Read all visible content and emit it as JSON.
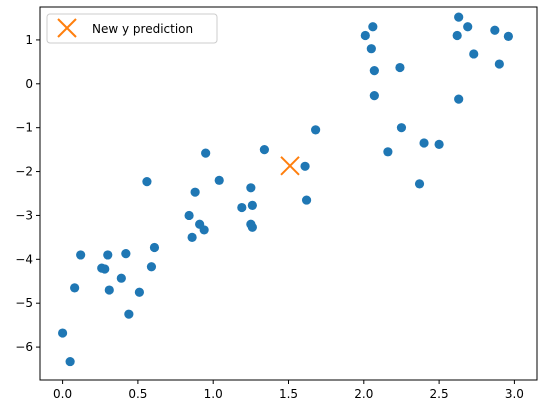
{
  "chart_data": {
    "type": "scatter",
    "title": "",
    "xlabel": "",
    "ylabel": "",
    "xlim": [
      -0.15,
      3.15
    ],
    "ylim": [
      -6.75,
      1.75
    ],
    "xticks": [
      0.0,
      0.5,
      1.0,
      1.5,
      2.0,
      2.5,
      3.0
    ],
    "xtick_labels": [
      "0.0",
      "0.5",
      "1.0",
      "1.5",
      "2.0",
      "2.5",
      "3.0"
    ],
    "yticks": [
      -6,
      -5,
      -4,
      -3,
      -2,
      -1,
      0,
      1
    ],
    "ytick_labels": [
      "−6",
      "−5",
      "−4",
      "−3",
      "−2",
      "−1",
      "0",
      "1"
    ],
    "grid": false,
    "legend_position": "upper-left",
    "series": [
      {
        "name": "",
        "color": "#1f77b4",
        "marker": "circle",
        "points": [
          {
            "x": 0.0,
            "y": -5.68
          },
          {
            "x": 0.05,
            "y": -6.33
          },
          {
            "x": 0.08,
            "y": -4.65
          },
          {
            "x": 0.12,
            "y": -3.9
          },
          {
            "x": 0.26,
            "y": -4.2
          },
          {
            "x": 0.28,
            "y": -4.22
          },
          {
            "x": 0.3,
            "y": -3.9
          },
          {
            "x": 0.31,
            "y": -4.7
          },
          {
            "x": 0.39,
            "y": -4.43
          },
          {
            "x": 0.42,
            "y": -3.87
          },
          {
            "x": 0.44,
            "y": -5.25
          },
          {
            "x": 0.51,
            "y": -4.75
          },
          {
            "x": 0.56,
            "y": -2.23
          },
          {
            "x": 0.59,
            "y": -4.17
          },
          {
            "x": 0.61,
            "y": -3.73
          },
          {
            "x": 0.84,
            "y": -3.0
          },
          {
            "x": 0.86,
            "y": -3.5
          },
          {
            "x": 0.88,
            "y": -2.47
          },
          {
            "x": 0.91,
            "y": -3.2
          },
          {
            "x": 0.94,
            "y": -3.33
          },
          {
            "x": 0.95,
            "y": -1.58
          },
          {
            "x": 1.04,
            "y": -2.2
          },
          {
            "x": 1.19,
            "y": -2.82
          },
          {
            "x": 1.25,
            "y": -2.37
          },
          {
            "x": 1.25,
            "y": -3.2
          },
          {
            "x": 1.26,
            "y": -2.77
          },
          {
            "x": 1.26,
            "y": -3.27
          },
          {
            "x": 1.34,
            "y": -1.5
          },
          {
            "x": 1.61,
            "y": -1.88
          },
          {
            "x": 1.62,
            "y": -2.65
          },
          {
            "x": 1.68,
            "y": -1.05
          },
          {
            "x": 2.01,
            "y": 1.1
          },
          {
            "x": 2.05,
            "y": 0.8
          },
          {
            "x": 2.06,
            "y": 1.3
          },
          {
            "x": 2.07,
            "y": 0.3
          },
          {
            "x": 2.07,
            "y": -0.27
          },
          {
            "x": 2.16,
            "y": -1.55
          },
          {
            "x": 2.24,
            "y": 0.37
          },
          {
            "x": 2.25,
            "y": -1.0
          },
          {
            "x": 2.37,
            "y": -2.28
          },
          {
            "x": 2.4,
            "y": -1.35
          },
          {
            "x": 2.5,
            "y": -1.38
          },
          {
            "x": 2.62,
            "y": 1.1
          },
          {
            "x": 2.63,
            "y": 1.52
          },
          {
            "x": 2.63,
            "y": -0.35
          },
          {
            "x": 2.69,
            "y": 1.3
          },
          {
            "x": 2.73,
            "y": 0.68
          },
          {
            "x": 2.87,
            "y": 1.22
          },
          {
            "x": 2.9,
            "y": 0.45
          },
          {
            "x": 2.96,
            "y": 1.08
          }
        ]
      },
      {
        "name": "New y prediction",
        "color": "#ff7f0e",
        "marker": "x",
        "points": [
          {
            "x": 1.51,
            "y": -1.87
          }
        ]
      }
    ]
  }
}
